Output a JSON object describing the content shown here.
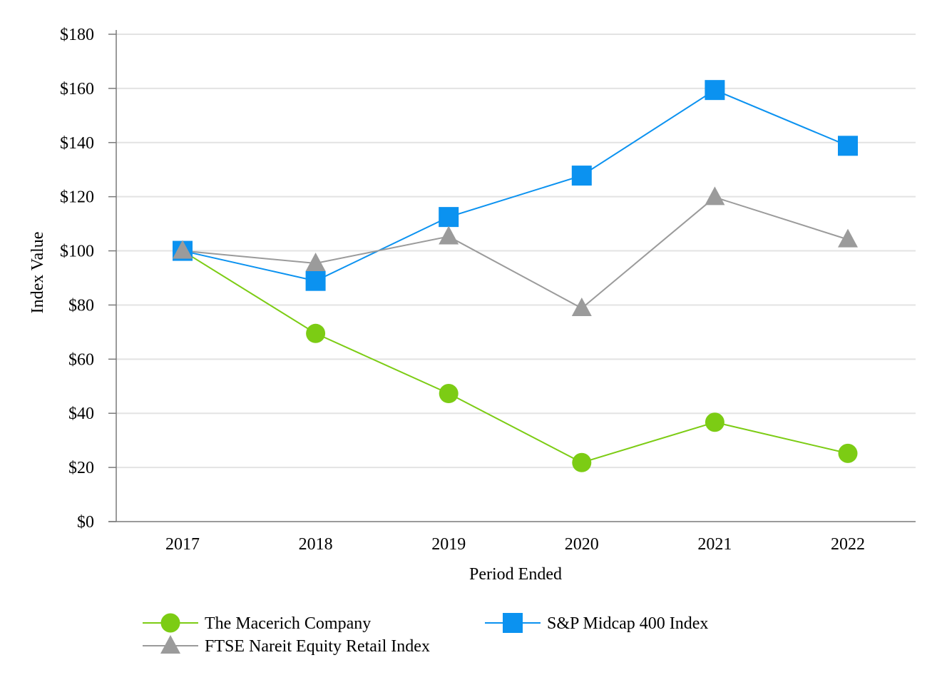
{
  "chart_data": {
    "type": "line",
    "title": "",
    "xlabel": "Period Ended",
    "ylabel": "Index Value",
    "categories": [
      "2017",
      "2018",
      "2019",
      "2020",
      "2021",
      "2022"
    ],
    "ylim": [
      0,
      180
    ],
    "y_ticks": [
      "$0",
      "$20",
      "$40",
      "$60",
      "$80",
      "$100",
      "$120",
      "$140",
      "$160",
      "$180"
    ],
    "grid": "horizontal",
    "legend_position": "bottom",
    "series": [
      {
        "name": "The Macerich Company",
        "values": [
          100,
          69.5,
          47.3,
          21.8,
          36.7,
          25.2
        ],
        "color": "#7ccc14",
        "marker": "circle"
      },
      {
        "name": "S&P Midcap 400 Index",
        "values": [
          100,
          88.9,
          112.5,
          127.8,
          159.4,
          138.8
        ],
        "color": "#0b92f0",
        "marker": "square"
      },
      {
        "name": "FTSE Nareit Equity Retail Index",
        "values": [
          100,
          95.4,
          105.3,
          78.8,
          119.8,
          104.2
        ],
        "color": "#9b9b9b",
        "marker": "triangle"
      }
    ]
  }
}
